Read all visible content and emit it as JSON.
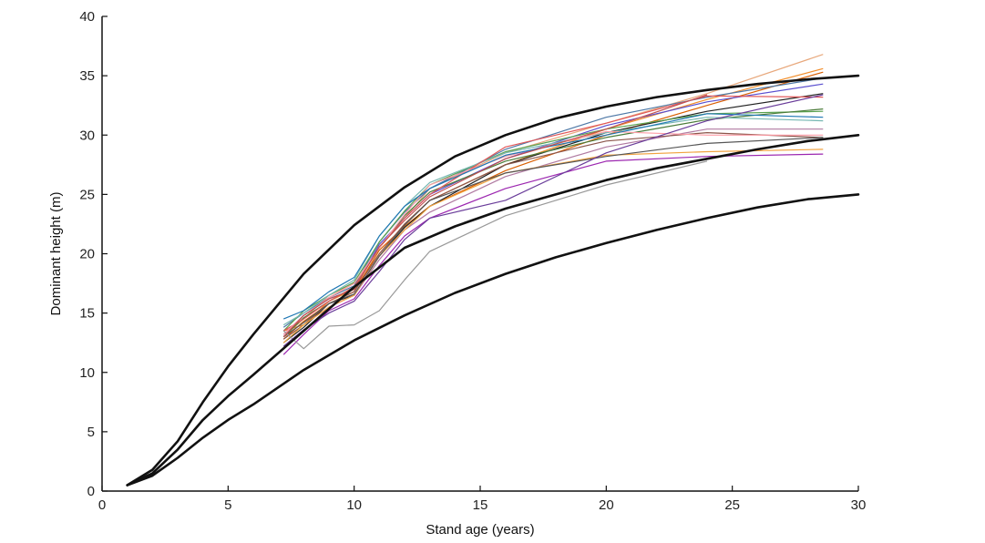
{
  "chart_data": {
    "type": "line",
    "title": "",
    "xlabel": "Stand age (years)",
    "ylabel": "Dominant height (m)",
    "xlim": [
      0,
      30
    ],
    "ylim": [
      0,
      40
    ],
    "xticks": [
      0,
      5,
      10,
      15,
      20,
      25,
      30
    ],
    "yticks": [
      0,
      5,
      10,
      15,
      20,
      25,
      30,
      35,
      40
    ],
    "grid": false,
    "legend": "none",
    "reference_curves": [
      {
        "color": "#111111",
        "x": [
          1,
          2,
          3,
          4,
          5,
          6,
          8,
          10,
          12,
          14,
          16,
          18,
          20,
          22,
          24,
          26,
          28,
          30
        ],
        "y": [
          0.5,
          1.8,
          4.2,
          7.5,
          10.5,
          13.2,
          18.3,
          22.4,
          25.6,
          28.2,
          30.0,
          31.4,
          32.4,
          33.2,
          33.8,
          34.3,
          34.7,
          35.0
        ]
      },
      {
        "color": "#111111",
        "x": [
          1,
          2,
          3,
          4,
          5,
          6,
          8,
          10,
          12,
          14,
          16,
          18,
          20,
          22,
          24,
          26,
          28,
          30
        ],
        "y": [
          0.5,
          1.5,
          3.5,
          6.0,
          8.0,
          9.8,
          13.5,
          17.2,
          20.5,
          22.3,
          23.8,
          25.0,
          26.2,
          27.2,
          28.0,
          28.8,
          29.5,
          30.0
        ]
      },
      {
        "color": "#111111",
        "x": [
          1,
          2,
          3,
          4,
          5,
          6,
          8,
          10,
          12,
          14,
          16,
          18,
          20,
          22,
          24,
          26,
          28,
          30
        ],
        "y": [
          0.5,
          1.3,
          2.8,
          4.5,
          6.0,
          7.3,
          10.2,
          12.7,
          14.8,
          16.7,
          18.3,
          19.7,
          20.9,
          22.0,
          23.0,
          23.9,
          24.6,
          25.0
        ]
      }
    ],
    "x": [
      7.2,
      8,
      9,
      10,
      11,
      12,
      13,
      16,
      20,
      24,
      28.6
    ],
    "series": [
      {
        "color": "#e8a87c",
        "values": [
          13.0,
          14.5,
          16.5,
          17.5,
          20.5,
          23.0,
          25.5,
          28.5,
          31.0,
          33.5,
          36.8
        ]
      },
      {
        "color": "#f28e2b",
        "values": [
          13.5,
          14.0,
          16.0,
          17.0,
          20.0,
          22.5,
          24.5,
          27.5,
          30.5,
          33.0,
          35.6
        ]
      },
      {
        "color": "#d95f02",
        "values": [
          12.8,
          14.3,
          15.8,
          16.8,
          20.3,
          22.3,
          24.0,
          27.0,
          30.0,
          32.5,
          35.3
        ]
      },
      {
        "color": "#4e79a7",
        "values": [
          13.8,
          15.0,
          16.3,
          17.3,
          21.0,
          23.5,
          25.5,
          28.8,
          31.5,
          33.2,
          34.8
        ]
      },
      {
        "color": "#5a4fcf",
        "values": [
          13.2,
          14.8,
          16.2,
          17.0,
          20.8,
          23.0,
          25.0,
          28.0,
          30.8,
          32.8,
          34.3
        ]
      },
      {
        "color": "#222222",
        "values": [
          12.5,
          13.8,
          15.8,
          16.5,
          19.8,
          22.2,
          24.0,
          27.5,
          30.2,
          32.0,
          33.5
        ]
      },
      {
        "color": "#59a14f",
        "values": [
          13.5,
          15.2,
          16.5,
          17.6,
          21.0,
          23.6,
          25.8,
          28.6,
          30.5,
          31.8,
          32.0
        ]
      },
      {
        "color": "#4b7c3a",
        "values": [
          13.0,
          14.6,
          16.0,
          17.2,
          20.5,
          23.2,
          25.2,
          27.8,
          29.8,
          31.3,
          32.2
        ]
      },
      {
        "color": "#76b7b2",
        "values": [
          14.0,
          15.0,
          16.5,
          17.8,
          21.5,
          24.0,
          26.0,
          28.5,
          30.2,
          31.5,
          31.2
        ]
      },
      {
        "color": "#e15759",
        "values": [
          13.5,
          14.5,
          16.0,
          17.2,
          20.5,
          23.0,
          25.0,
          29.0,
          31.0,
          33.3,
          33.2
        ]
      },
      {
        "color": "#b07aa1",
        "values": [
          12.0,
          13.5,
          15.5,
          16.5,
          19.5,
          22.0,
          23.5,
          26.5,
          29.0,
          30.5,
          30.5
        ]
      },
      {
        "color": "#9c27b0",
        "values": [
          11.5,
          13.2,
          15.2,
          16.2,
          19.0,
          21.5,
          23.0,
          25.5,
          27.8,
          28.2,
          28.4
        ]
      },
      {
        "color": "#8c564b",
        "values": [
          12.8,
          14.0,
          15.8,
          16.8,
          20.0,
          22.5,
          24.5,
          27.5,
          29.5,
          30.2,
          29.8
        ]
      },
      {
        "color": "#ff9da7",
        "values": [
          13.2,
          14.8,
          16.3,
          17.5,
          20.5,
          23.3,
          25.8,
          28.2,
          30.3,
          30.0,
          30.0
        ]
      },
      {
        "color": "#f1a340",
        "values": [
          12.5,
          14.0,
          15.5,
          16.5,
          19.8,
          22.0,
          24.0,
          26.8,
          28.3,
          28.6,
          28.8
        ]
      },
      {
        "color": "#555555",
        "values": [
          13.0,
          14.2,
          15.8,
          16.6,
          19.8,
          22.4,
          24.5,
          26.8,
          28.2,
          29.3,
          29.8
        ]
      },
      {
        "color": "#999999",
        "values": [
          13.5,
          12.0,
          13.9,
          14.0,
          15.2,
          17.8,
          20.2,
          23.2,
          25.8,
          27.8,
          null
        ]
      },
      {
        "color": "#6a3d9a",
        "values": [
          12.2,
          13.6,
          15.0,
          16.0,
          18.5,
          21.2,
          23.0,
          24.5,
          28.5,
          31.2,
          33.4
        ]
      },
      {
        "color": "#1f77b4",
        "values": [
          14.5,
          15.2,
          16.8,
          18.0,
          21.5,
          24.0,
          25.5,
          28.3,
          30.0,
          31.8,
          31.5
        ]
      },
      {
        "color": "#c05050",
        "values": [
          13.0,
          14.8,
          16.2,
          17.0,
          20.6,
          22.8,
          24.8,
          28.0,
          30.5,
          33.4,
          null
        ]
      }
    ]
  }
}
